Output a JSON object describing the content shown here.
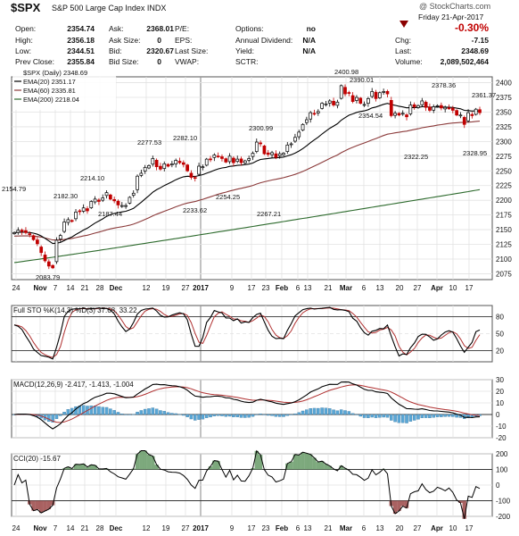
{
  "header": {
    "symbol": "$SPX",
    "subtitle": "S&P 500 Large Cap Index  INDX",
    "watermark": "@ StockCharts.com",
    "date": "Friday  21-Apr-2017",
    "change_pct": "-0.30%",
    "open_label": "Open:",
    "open": "2354.74",
    "high_label": "High:",
    "high": "2356.18",
    "low_label": "Low:",
    "low": "2344.51",
    "prev_close_label": "Prev Close:",
    "prev_close": "2355.84",
    "ask_label": "Ask:",
    "ask": "2368.01",
    "ask_size_label": "Ask Size:",
    "ask_size": "0",
    "bid_label": "Bid:",
    "bid": "2320.67",
    "bid_size_label": "Bid Size:",
    "bid_size": "0",
    "pe_label": "P/E:",
    "eps_label": "EPS:",
    "last_size_label": "Last Size:",
    "vwap_label": "VWAP:",
    "options_label": "Options:",
    "options": "no",
    "annual_div_label": "Annual Dividend:",
    "annual_div": "N/A",
    "yield_label": "Yield:",
    "yield": "N/A",
    "sctr_label": "SCTR:",
    "chg_label": "Chg:",
    "chg": "-7.15",
    "last_label": "Last:",
    "last": "2348.69",
    "volume_label": "Volume:",
    "volume": "2,089,502,464"
  },
  "chart_data": [
    {
      "type": "candlestick",
      "legend": [
        "$SPX (Daily) 2348.69",
        "EMA(20) 2351.17",
        "EMA(60) 2335.81",
        "EMA(200) 2218.04"
      ],
      "colors": {
        "up": "#000000",
        "down": "#c00000",
        "ema20": "#000000",
        "ema60": "#8b3a3a",
        "ema200": "#2e6b2e"
      },
      "ylim": [
        2065,
        2410
      ],
      "yticks": [
        2075,
        2100,
        2125,
        2150,
        2175,
        2200,
        2225,
        2250,
        2275,
        2300,
        2325,
        2350,
        2375,
        2400
      ],
      "xticks": [
        "24",
        "Nov",
        "7",
        "14",
        "21",
        "28",
        "Dec",
        "12",
        "19",
        "27",
        "2017",
        "9",
        "17",
        "23",
        "Feb",
        "6",
        "13",
        "21",
        "Mar",
        "6",
        "13",
        "20",
        "27",
        "Apr",
        "10",
        "17"
      ],
      "annotations": [
        "2154.79",
        "2083.79",
        "2182.30",
        "2187.44",
        "2214.10",
        "2277.53",
        "2233.62",
        "2282.10",
        "2254.25",
        "2300.99",
        "2267.21",
        "2400.98",
        "2390.01",
        "2354.54",
        "2322.25",
        "2378.36",
        "2328.95",
        "2361.37"
      ],
      "close": [
        2145,
        2149,
        2147,
        2145,
        2142,
        2133,
        2126,
        2111,
        2097,
        2088,
        2085,
        2132,
        2140,
        2163,
        2167,
        2164,
        2180,
        2181,
        2187,
        2182,
        2198,
        2202,
        2198,
        2204,
        2213,
        2202,
        2199,
        2192,
        2191,
        2191,
        2205,
        2212,
        2241,
        2246,
        2256,
        2259,
        2271,
        2257,
        2253,
        2262,
        2258,
        2262,
        2268,
        2264,
        2261,
        2250,
        2239,
        2238,
        2258,
        2257,
        2270,
        2269,
        2277,
        2275,
        2271,
        2265,
        2275,
        2264,
        2270,
        2264,
        2267,
        2271,
        2280,
        2299,
        2296,
        2279,
        2278,
        2281,
        2273,
        2279,
        2280,
        2294,
        2296,
        2307,
        2316,
        2329,
        2337,
        2349,
        2347,
        2351,
        2365,
        2364,
        2369,
        2362,
        2367,
        2395,
        2381,
        2383,
        2368,
        2375,
        2365,
        2363,
        2373,
        2385,
        2373,
        2383,
        2385,
        2381,
        2344,
        2348,
        2345,
        2348,
        2342,
        2362,
        2359,
        2361,
        2369,
        2358,
        2353,
        2359,
        2361,
        2357,
        2358,
        2357,
        2353,
        2345,
        2345,
        2329,
        2349,
        2344,
        2355,
        2349
      ]
    },
    {
      "type": "line",
      "title": "Full STO %K(14,3) %D(3) 37.68, 33.22",
      "series": [
        {
          "name": "%K"
        },
        {
          "name": "%D"
        }
      ],
      "ylim": [
        0,
        100
      ],
      "yticks": [
        20,
        50,
        80
      ],
      "xticks": [
        "24",
        "Nov",
        "7",
        "14",
        "21",
        "28",
        "Dec",
        "12",
        "19",
        "27",
        "2017",
        "9",
        "17",
        "23",
        "Feb",
        "6",
        "13",
        "21",
        "Mar",
        "6",
        "13",
        "20",
        "27",
        "Apr",
        "10",
        "17"
      ]
    },
    {
      "type": "line",
      "title": "MACD(12,26,9) -2.417, -1.413, -1.004",
      "series": [
        {
          "name": "MACD"
        },
        {
          "name": "Signal"
        },
        {
          "name": "Histogram"
        }
      ],
      "ylim": [
        -20,
        30
      ],
      "yticks": [
        -20,
        -10,
        0,
        10,
        20,
        30
      ],
      "xticks": [
        "24",
        "Nov",
        "7",
        "14",
        "21",
        "28",
        "Dec",
        "12",
        "19",
        "27",
        "2017",
        "9",
        "17",
        "23",
        "Feb",
        "6",
        "13",
        "21",
        "Mar",
        "6",
        "13",
        "20",
        "27",
        "Apr",
        "10",
        "17"
      ]
    },
    {
      "type": "area",
      "title": "CCI(20) -15.67",
      "series": [
        {
          "name": "CCI"
        }
      ],
      "ylim": [
        -200,
        200
      ],
      "yticks": [
        -200,
        -100,
        0,
        100,
        200
      ],
      "xticks": [
        "24",
        "Nov",
        "7",
        "14",
        "21",
        "28",
        "Dec",
        "12",
        "19",
        "27",
        "2017",
        "9",
        "17",
        "23",
        "Feb",
        "6",
        "13",
        "21",
        "Mar",
        "6",
        "13",
        "20",
        "27",
        "Apr",
        "10",
        "17"
      ]
    }
  ]
}
